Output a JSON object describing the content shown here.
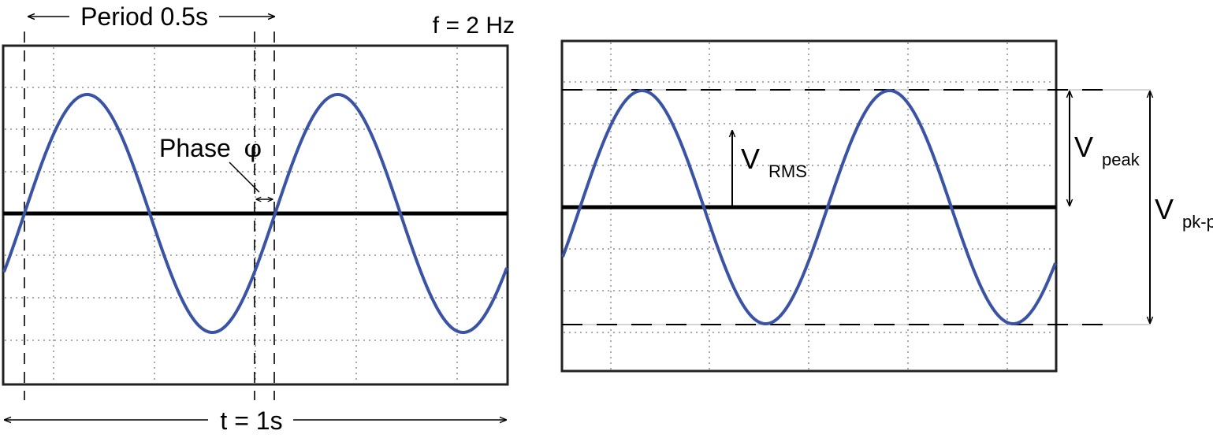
{
  "left_panel": {
    "period_label": "Period 0.5s",
    "frequency_label": "f = 2 Hz",
    "phase_label": "Phase",
    "phase_symbol": "φ",
    "time_label": "t = 1s"
  },
  "right_panel": {
    "rms_label_main": "V",
    "rms_label_sub": "RMS",
    "peak_label_main": "V",
    "peak_label_sub": "peak",
    "pkpk_label_main": "V",
    "pkpk_label_sub": "pk-pk"
  },
  "colors": {
    "wave": "#3a53a4",
    "axis": "#000000",
    "grid": "#444444"
  },
  "wave": {
    "frequency_hz": 2,
    "time_window_s": 1
  }
}
